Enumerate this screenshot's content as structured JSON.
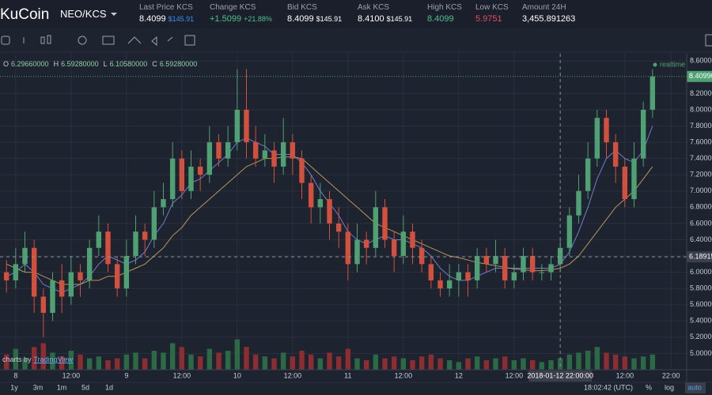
{
  "header": {
    "logo": "KuCoin",
    "pair": "NEO/KCS",
    "stats": [
      {
        "label": "Last Price KCS",
        "value": "8.4099",
        "extra": "$145.91"
      },
      {
        "label": "Change KCS",
        "value": "+1.5099",
        "extra": "+21.88%"
      },
      {
        "label": "Bid KCS",
        "value": "8.4099",
        "extra": "$145.91"
      },
      {
        "label": "Ask KCS",
        "value": "8.4100",
        "extra": "$145.91"
      },
      {
        "label": "High KCS",
        "value": "8.4099"
      },
      {
        "label": "Low KCS",
        "value": "5.9751"
      },
      {
        "label": "Amount 24H",
        "value": "3,455.891263"
      }
    ]
  },
  "legend": {
    "items": [
      {
        "key": "O",
        "value": "6.29660000"
      },
      {
        "key": "H",
        "value": "6.59280000"
      },
      {
        "key": "L",
        "value": "6.10580000"
      },
      {
        "key": "C",
        "value": "6.59280000"
      }
    ],
    "status": "realtime"
  },
  "watermark": {
    "prefix": "charts by",
    "brand": "TradingView"
  },
  "footer": {
    "ranges": [
      "1y",
      "3m",
      "1m",
      "5d",
      "1d"
    ],
    "clock": "18:02:42 (UTC)",
    "options": [
      "%",
      "log",
      "auto"
    ]
  },
  "chart_data": {
    "type": "candlestick",
    "xlim": [
      -3.4,
      145.4
    ],
    "ylim": [
      4.8,
      8.69
    ],
    "volume_lim": [
      0,
      100
    ],
    "xticks": [
      {
        "value": 0,
        "label": "8"
      },
      {
        "value": 12,
        "label": "12:00"
      },
      {
        "value": 24,
        "label": "9"
      },
      {
        "value": 36,
        "label": "12:00"
      },
      {
        "value": 48,
        "label": "10"
      },
      {
        "value": 60,
        "label": "12:00"
      },
      {
        "value": 72,
        "label": "11"
      },
      {
        "value": 84,
        "label": "12:00"
      },
      {
        "value": 96,
        "label": "12"
      },
      {
        "value": 108,
        "label": "12:00"
      },
      {
        "value": 132,
        "label": "12:00"
      },
      {
        "value": 142,
        "label": "22:00"
      }
    ],
    "yticks": [
      {
        "value": 5.0,
        "label": "5.00000"
      },
      {
        "value": 5.2,
        "label": "5.20000"
      },
      {
        "value": 5.4,
        "label": "5.40000"
      },
      {
        "value": 5.6,
        "label": "5.60000"
      },
      {
        "value": 5.8,
        "label": "5.80000"
      },
      {
        "value": 6.0,
        "label": "6.00000"
      },
      {
        "value": 6.2,
        "label": "6.20000"
      },
      {
        "value": 6.4,
        "label": "6.40000"
      },
      {
        "value": 6.6,
        "label": "6.60000"
      },
      {
        "value": 6.8,
        "label": "6.80000"
      },
      {
        "value": 7.0,
        "label": "7.00000"
      },
      {
        "value": 7.2,
        "label": "7.20000"
      },
      {
        "value": 7.4,
        "label": "7.40000"
      },
      {
        "value": 7.6,
        "label": "7.60000"
      },
      {
        "value": 7.8,
        "label": "7.80000"
      },
      {
        "value": 8.0,
        "label": "8.00000"
      },
      {
        "value": 8.2,
        "label": "8.20000"
      },
      {
        "value": 8.6,
        "label": "8.60000"
      }
    ],
    "last_price": {
      "value": 8.4099,
      "label": "8.40990"
    },
    "crosshair": {
      "x": {
        "value": 118,
        "label": "2018-01-12 22:00:00"
      },
      "y": {
        "value": 6.18915,
        "label": "6.18915"
      }
    },
    "up_color": "#4fa072",
    "down_color": "#d2503e",
    "up_volume_color": "#2b6a45",
    "down_volume_color": "#8b2d31",
    "x": [
      -2,
      0,
      2,
      4,
      6,
      8,
      10,
      12,
      14,
      16,
      18,
      20,
      22,
      24,
      26,
      28,
      30,
      32,
      34,
      36,
      38,
      40,
      42,
      44,
      46,
      48,
      50,
      52,
      54,
      56,
      58,
      60,
      62,
      64,
      66,
      68,
      70,
      72,
      74,
      76,
      78,
      80,
      82,
      84,
      86,
      88,
      90,
      92,
      94,
      96,
      98,
      100,
      102,
      104,
      106,
      108,
      110,
      112,
      114,
      116,
      118,
      120,
      122,
      124,
      126,
      128,
      130,
      132,
      134,
      136,
      138
    ],
    "open": [
      6.0,
      5.9,
      6.1,
      6.3,
      5.7,
      5.5,
      5.9,
      5.7,
      6.0,
      5.9,
      6.3,
      6.5,
      6.1,
      5.8,
      6.2,
      6.5,
      6.4,
      6.8,
      6.9,
      7.4,
      7.0,
      7.3,
      7.2,
      7.6,
      7.4,
      7.6,
      8.0,
      7.6,
      7.4,
      7.5,
      7.3,
      7.6,
      7.4,
      7.1,
      6.8,
      6.9,
      6.6,
      6.5,
      6.1,
      6.4,
      6.3,
      6.8,
      6.4,
      6.2,
      6.5,
      6.3,
      6.1,
      5.9,
      5.8,
      5.9,
      6.0,
      5.9,
      6.2,
      6.1,
      6.2,
      5.9,
      6.0,
      6.2,
      6.0,
      6.0,
      6.1,
      6.3,
      6.7,
      7.0,
      7.4,
      7.9,
      7.6,
      7.3,
      6.9,
      7.4,
      8.0
    ],
    "high": [
      6.15,
      6.3,
      6.5,
      6.4,
      5.8,
      6.0,
      6.1,
      6.2,
      6.1,
      6.4,
      6.7,
      6.6,
      6.2,
      6.4,
      6.7,
      6.6,
      7.0,
      7.1,
      7.6,
      7.5,
      7.5,
      7.4,
      7.8,
      7.7,
      7.8,
      8.5,
      8.5,
      7.8,
      7.7,
      7.6,
      7.9,
      7.7,
      7.5,
      7.2,
      7.1,
      7.0,
      6.8,
      6.6,
      6.6,
      6.5,
      7.0,
      6.9,
      6.5,
      6.7,
      6.6,
      6.4,
      6.2,
      6.0,
      6.1,
      6.1,
      6.1,
      6.3,
      6.3,
      6.4,
      6.3,
      6.1,
      6.3,
      6.3,
      6.1,
      6.2,
      6.4,
      6.8,
      7.2,
      7.6,
      8.0,
      8.0,
      7.7,
      7.4,
      7.6,
      8.1,
      8.5
    ],
    "low": [
      5.75,
      5.8,
      6.0,
      5.5,
      5.2,
      5.4,
      5.5,
      5.6,
      5.7,
      5.8,
      6.2,
      6.0,
      5.7,
      5.7,
      6.1,
      6.2,
      6.3,
      6.7,
      6.8,
      6.9,
      6.9,
      7.0,
      7.1,
      7.3,
      7.3,
      7.5,
      7.4,
      7.3,
      7.3,
      7.1,
      7.2,
      7.2,
      6.9,
      6.6,
      6.6,
      6.4,
      6.3,
      5.9,
      6.0,
      6.1,
      6.2,
      6.3,
      6.0,
      6.1,
      6.1,
      6.0,
      5.8,
      5.7,
      5.7,
      5.7,
      5.7,
      5.8,
      6.0,
      6.0,
      5.8,
      5.8,
      5.9,
      5.9,
      5.9,
      5.9,
      6.0,
      6.2,
      6.6,
      6.9,
      7.3,
      7.4,
      7.1,
      6.8,
      6.8,
      7.3,
      7.9
    ],
    "close": [
      5.9,
      6.1,
      6.3,
      5.7,
      5.5,
      5.9,
      5.7,
      6.0,
      5.9,
      6.3,
      6.5,
      6.1,
      5.8,
      6.2,
      6.5,
      6.4,
      6.8,
      6.9,
      7.4,
      7.0,
      7.3,
      7.2,
      7.6,
      7.4,
      7.6,
      8.0,
      7.6,
      7.4,
      7.5,
      7.3,
      7.6,
      7.4,
      7.1,
      6.8,
      6.9,
      6.6,
      6.5,
      6.1,
      6.4,
      6.3,
      6.8,
      6.4,
      6.2,
      6.5,
      6.3,
      6.1,
      5.9,
      5.8,
      5.9,
      6.0,
      5.9,
      6.2,
      6.1,
      6.2,
      5.9,
      6.0,
      6.2,
      6.0,
      6.0,
      6.1,
      6.3,
      6.7,
      7.0,
      7.4,
      7.9,
      7.6,
      7.3,
      6.9,
      7.4,
      8.0,
      8.41
    ],
    "volume": [
      40,
      55,
      30,
      60,
      70,
      45,
      35,
      50,
      40,
      30,
      35,
      25,
      30,
      40,
      45,
      30,
      50,
      45,
      70,
      60,
      40,
      35,
      55,
      45,
      50,
      80,
      60,
      40,
      35,
      30,
      45,
      35,
      50,
      40,
      30,
      45,
      35,
      55,
      30,
      25,
      40,
      30,
      35,
      30,
      25,
      35,
      40,
      30,
      25,
      20,
      30,
      35,
      25,
      30,
      35,
      25,
      30,
      25,
      20,
      25,
      30,
      40,
      45,
      50,
      60,
      45,
      40,
      35,
      30,
      35,
      40
    ],
    "moving_averages": [
      {
        "color": "#6f7fd0",
        "values": [
          5.95,
          6.0,
          6.1,
          6.0,
          5.85,
          5.8,
          5.75,
          5.8,
          5.85,
          5.95,
          6.1,
          6.2,
          6.15,
          6.1,
          6.15,
          6.25,
          6.45,
          6.6,
          6.85,
          6.95,
          7.1,
          7.15,
          7.25,
          7.35,
          7.45,
          7.6,
          7.65,
          7.6,
          7.55,
          7.45,
          7.45,
          7.45,
          7.35,
          7.2,
          7.0,
          6.85,
          6.7,
          6.5,
          6.4,
          6.35,
          6.4,
          6.45,
          6.4,
          6.4,
          6.35,
          6.3,
          6.2,
          6.05,
          5.95,
          5.9,
          5.9,
          5.95,
          6.0,
          6.05,
          6.05,
          6.05,
          6.05,
          6.05,
          6.05,
          6.05,
          6.1,
          6.25,
          6.5,
          6.8,
          7.15,
          7.4,
          7.5,
          7.4,
          7.35,
          7.5,
          7.8
        ]
      },
      {
        "color": "#b8955a",
        "values": [
          6.1,
          6.05,
          6.0,
          6.0,
          5.95,
          5.9,
          5.85,
          5.85,
          5.85,
          5.9,
          5.9,
          5.95,
          5.95,
          6.0,
          6.05,
          6.1,
          6.2,
          6.3,
          6.45,
          6.55,
          6.7,
          6.8,
          6.9,
          7.0,
          7.1,
          7.2,
          7.3,
          7.35,
          7.4,
          7.4,
          7.42,
          7.42,
          7.4,
          7.3,
          7.2,
          7.1,
          7.0,
          6.9,
          6.8,
          6.7,
          6.6,
          6.55,
          6.5,
          6.45,
          6.4,
          6.35,
          6.3,
          6.25,
          6.2,
          6.18,
          6.15,
          6.12,
          6.1,
          6.08,
          6.06,
          6.04,
          6.03,
          6.02,
          6.02,
          6.03,
          6.05,
          6.1,
          6.2,
          6.35,
          6.5,
          6.65,
          6.8,
          6.9,
          7.0,
          7.15,
          7.3
        ]
      }
    ]
  }
}
